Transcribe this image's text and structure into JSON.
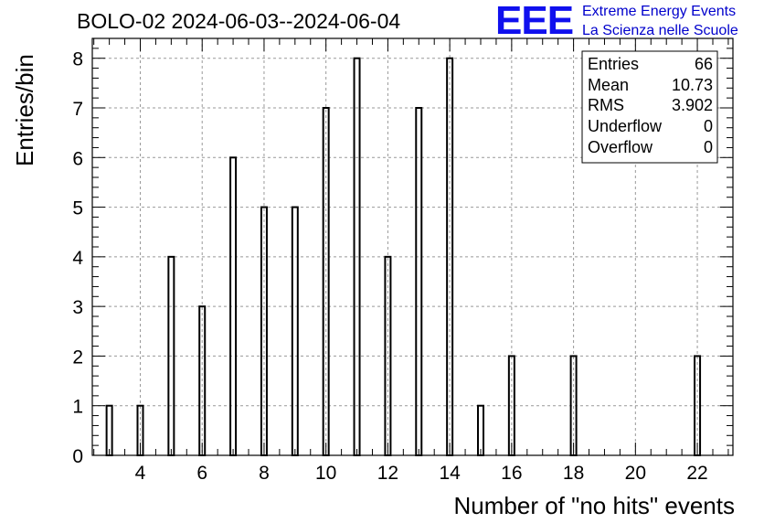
{
  "header": {
    "title": "BOLO-02 2024-06-03--2024-06-04",
    "logo_mark": "EEE",
    "logo_line1": "Extreme Energy Events",
    "logo_line2": "La Scienza nelle Scuole"
  },
  "stats": [
    {
      "label": "Entries",
      "value": "66"
    },
    {
      "label": "Mean",
      "value": "10.73"
    },
    {
      "label": "RMS",
      "value": "3.902"
    },
    {
      "label": "Underflow",
      "value": "0"
    },
    {
      "label": "Overflow",
      "value": "0"
    }
  ],
  "chart_data": {
    "type": "bar",
    "title": "BOLO-02 2024-06-03--2024-06-04",
    "xlabel": "Number of \"no hits\" events",
    "ylabel": "Entries/bin",
    "x": [
      3,
      4,
      5,
      6,
      7,
      8,
      9,
      10,
      11,
      12,
      13,
      14,
      15,
      16,
      18,
      22
    ],
    "values": [
      1,
      1,
      4,
      3,
      6,
      5,
      5,
      7,
      8,
      4,
      7,
      8,
      1,
      2,
      2,
      2
    ],
    "xlim": [
      2.45,
      23.15
    ],
    "ylim": [
      0,
      8.4
    ],
    "xticks": [
      "4",
      "6",
      "8",
      "10",
      "12",
      "14",
      "16",
      "18",
      "20",
      "22"
    ],
    "yticks": [
      "0",
      "1",
      "2",
      "3",
      "4",
      "5",
      "6",
      "7",
      "8"
    ],
    "grid": true,
    "legend": "top-right",
    "bar_color": "#000000"
  }
}
